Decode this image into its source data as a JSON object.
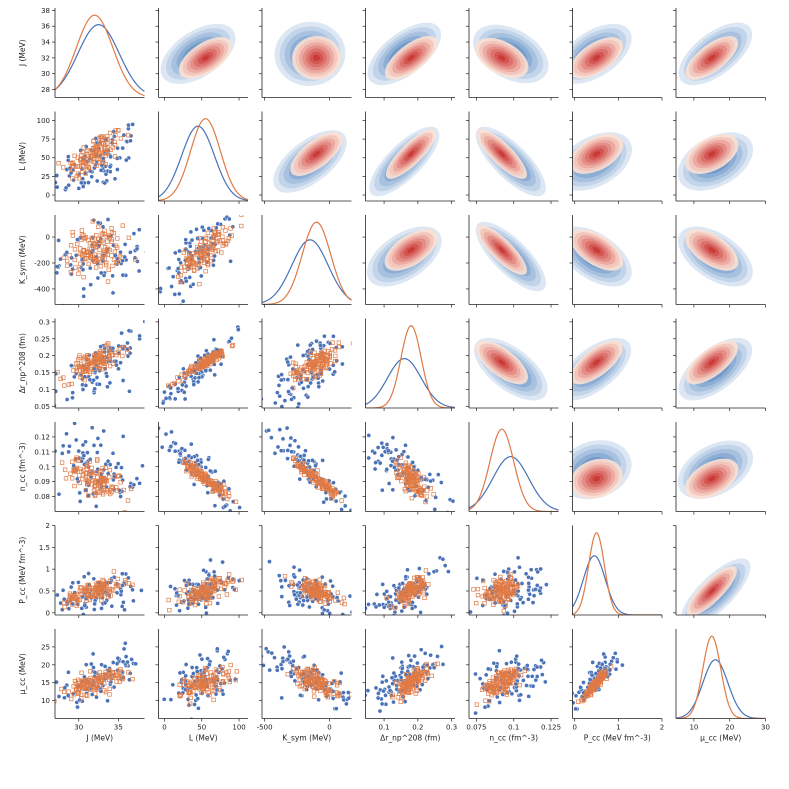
{
  "chart_data": {
    "type": "pairplot",
    "title": "",
    "colors": {
      "series_a": "#4a72b8",
      "series_b": "#e07a45",
      "kde_blue_dark": "#1f5ea8",
      "kde_blue_light": "#d6e3f1",
      "kde_red_dark": "#c21a1a",
      "kde_red_light": "#fbe0d4"
    },
    "series": [
      {
        "name": "series_a",
        "marker": "circle"
      },
      {
        "name": "series_b",
        "marker": "square"
      }
    ],
    "variables": [
      {
        "key": "J",
        "xlabel": "J (MeV)",
        "ylabel": "J (MeV)",
        "range": [
          27,
          38.3
        ],
        "xticks": [
          30,
          35
        ],
        "yticks": [
          28,
          30,
          32,
          34,
          36,
          38
        ],
        "a_mean": 32.5,
        "a_sd": 2.6,
        "b_mean": 32,
        "b_sd": 2.3
      },
      {
        "key": "L",
        "xlabel": "L (MeV)",
        "ylabel": "L (MeV)",
        "range": [
          -8,
          112
        ],
        "xticks": [
          0,
          50,
          100
        ],
        "yticks": [
          0,
          25,
          50,
          75,
          100
        ],
        "a_mean": 45,
        "a_sd": 22,
        "b_mean": 55,
        "b_sd": 20
      },
      {
        "key": "Ksym",
        "xlabel": "K_sym (MeV)",
        "ylabel": "K_sym (MeV)",
        "range": [
          -520,
          170
        ],
        "xticks": [
          -500,
          0
        ],
        "yticks": [
          -400,
          -200,
          0
        ],
        "a_mean": -150,
        "a_sd": 140,
        "b_mean": -100,
        "b_sd": 110
      },
      {
        "key": "dr",
        "xlabel": "Δr_np^208 (fm)",
        "ylabel": "Δr_np^208 (fm)",
        "range": [
          0.045,
          0.31
        ],
        "xticks": [
          0.1,
          0.2,
          0.3
        ],
        "yticks": [
          0.05,
          0.1,
          0.15,
          0.2,
          0.25,
          0.3
        ],
        "a_mean": 0.16,
        "a_sd": 0.05,
        "b_mean": 0.18,
        "b_sd": 0.03
      },
      {
        "key": "ncc",
        "xlabel": "n_cc (fm^-3)",
        "ylabel": "n_cc (fm^-3)",
        "range": [
          0.07,
          0.13
        ],
        "xticks": [
          0.075,
          0.1,
          0.125
        ],
        "yticks": [
          0.08,
          0.09,
          0.1,
          0.11,
          0.12
        ],
        "a_mean": 0.098,
        "a_sd": 0.012,
        "b_mean": 0.092,
        "b_sd": 0.008
      },
      {
        "key": "Pcc",
        "xlabel": "P_cc (MeV fm^-3)",
        "ylabel": "P_cc (MeV fm^-3)",
        "range": [
          -0.05,
          2
        ],
        "xticks": [
          0,
          1,
          2
        ],
        "yticks": [
          0,
          0.5,
          1,
          1.5,
          2
        ],
        "a_mean": 0.45,
        "a_sd": 0.25,
        "b_mean": 0.5,
        "b_sd": 0.18
      },
      {
        "key": "mucc",
        "xlabel": "μ_cc (MeV)",
        "ylabel": "μ_cc (MeV)",
        "range": [
          5,
          30
        ],
        "xticks": [
          10,
          20,
          30
        ],
        "yticks": [
          10,
          15,
          20,
          25
        ],
        "a_mean": 16,
        "a_sd": 3.5,
        "b_mean": 15,
        "b_sd": 2.5
      }
    ],
    "correlation_matrix": [
      [
        1.0,
        0.6,
        0.1,
        0.7,
        -0.5,
        0.6,
        0.7
      ],
      [
        0.6,
        1.0,
        0.7,
        0.9,
        -0.9,
        0.5,
        0.5
      ],
      [
        0.1,
        0.7,
        1.0,
        0.6,
        -0.9,
        -0.6,
        -0.6
      ],
      [
        0.7,
        0.9,
        0.6,
        1.0,
        -0.7,
        0.7,
        0.7
      ],
      [
        -0.5,
        -0.9,
        -0.9,
        -0.7,
        1.0,
        0.3,
        0.5
      ],
      [
        0.6,
        0.5,
        -0.6,
        0.7,
        0.3,
        1.0,
        0.9
      ],
      [
        0.7,
        0.5,
        -0.6,
        0.7,
        0.5,
        0.9,
        1.0
      ]
    ],
    "layout": {
      "lower": "scatter",
      "diagonal": "kde",
      "upper": "kde_filled"
    }
  }
}
